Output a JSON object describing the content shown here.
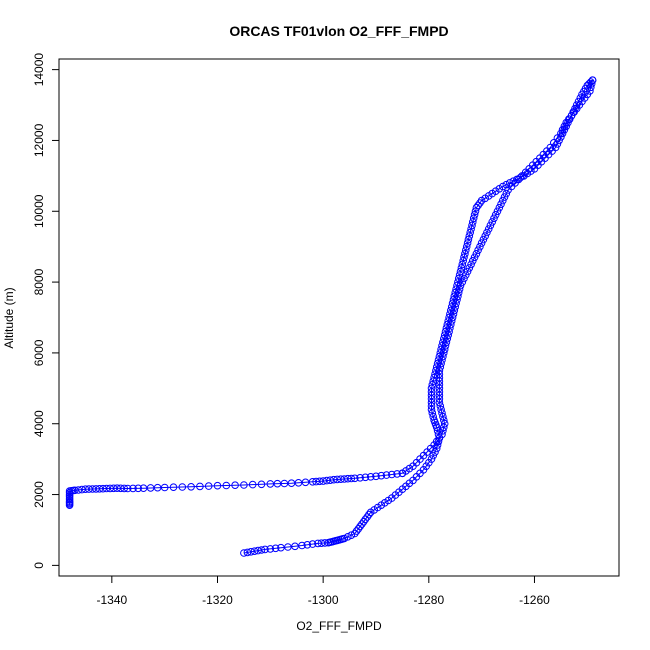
{
  "chart_data": {
    "type": "scatter",
    "title": "ORCAS TF01vlon O2_FFF_FMPD",
    "xlabel": "O2_FFF_FMPD",
    "ylabel": "Altitude (m)",
    "xlim": [
      -1350,
      -1244
    ],
    "ylim": [
      -300,
      14300
    ],
    "xticks": [
      -1340,
      -1320,
      -1300,
      -1280,
      -1260
    ],
    "yticks": [
      0,
      2000,
      4000,
      6000,
      8000,
      10000,
      12000,
      14000
    ],
    "grid": false,
    "legend": "none",
    "series_color": "#0000ff",
    "marker": "open-circle",
    "connected": true,
    "series": [
      {
        "segment": "climb-low",
        "points": [
          [
            -1315,
            350
          ],
          [
            -1313,
            400
          ],
          [
            -1311,
            450
          ],
          [
            -1308,
            500
          ],
          [
            -1304,
            560
          ],
          [
            -1301,
            620
          ],
          [
            -1299,
            640
          ],
          [
            -1298,
            680
          ],
          [
            -1297,
            720
          ],
          [
            -1296,
            760
          ],
          [
            -1294,
            900
          ],
          [
            -1293,
            1100
          ],
          [
            -1292,
            1300
          ],
          [
            -1291,
            1500
          ],
          [
            -1289,
            1700
          ],
          [
            -1287,
            1900
          ],
          [
            -1285,
            2150
          ],
          [
            -1283,
            2400
          ],
          [
            -1281,
            2700
          ],
          [
            -1279.5,
            3000
          ],
          [
            -1278.5,
            3300
          ],
          [
            -1278,
            3600
          ],
          [
            -1278.5,
            3900
          ],
          [
            -1279,
            4100
          ],
          [
            -1279.5,
            4400
          ],
          [
            -1279.5,
            4700
          ],
          [
            -1279.5,
            5000
          ],
          [
            -1279,
            5300
          ],
          [
            -1278.5,
            5600
          ],
          [
            -1278,
            5900
          ],
          [
            -1277.5,
            6200
          ],
          [
            -1277,
            6500
          ],
          [
            -1276.5,
            6800
          ],
          [
            -1276,
            7100
          ],
          [
            -1275.5,
            7400
          ],
          [
            -1275,
            7700
          ],
          [
            -1274.5,
            8000
          ],
          [
            -1274,
            8300
          ],
          [
            -1273.5,
            8600
          ],
          [
            -1273,
            8900
          ],
          [
            -1272.5,
            9200
          ],
          [
            -1272,
            9500
          ],
          [
            -1271.5,
            9800
          ],
          [
            -1271,
            10100
          ],
          [
            -1270,
            10300
          ],
          [
            -1268,
            10500
          ],
          [
            -1266,
            10700
          ],
          [
            -1264,
            10850
          ],
          [
            -1262,
            11000
          ],
          [
            -1260,
            11200
          ],
          [
            -1258,
            11500
          ],
          [
            -1256,
            11800
          ],
          [
            -1255,
            12100
          ],
          [
            -1254,
            12400
          ],
          [
            -1253,
            12700
          ],
          [
            -1252,
            13000
          ],
          [
            -1251,
            13300
          ],
          [
            -1250,
            13550
          ],
          [
            -1249,
            13700
          ]
        ]
      },
      {
        "segment": "descent",
        "points": [
          [
            -1249,
            13700
          ],
          [
            -1249.5,
            13400
          ],
          [
            -1251,
            13100
          ],
          [
            -1252.5,
            12800
          ],
          [
            -1254,
            12500
          ],
          [
            -1255,
            12200
          ],
          [
            -1257,
            11800
          ],
          [
            -1259,
            11500
          ],
          [
            -1261,
            11200
          ],
          [
            -1263,
            10900
          ],
          [
            -1265,
            10600
          ],
          [
            -1266,
            10300
          ],
          [
            -1267,
            10000
          ],
          [
            -1268,
            9700
          ],
          [
            -1269,
            9400
          ],
          [
            -1270,
            9100
          ],
          [
            -1271,
            8800
          ],
          [
            -1272,
            8500
          ],
          [
            -1273,
            8200
          ],
          [
            -1274,
            7900
          ],
          [
            -1274.5,
            7600
          ],
          [
            -1275,
            7300
          ],
          [
            -1275.5,
            7000
          ],
          [
            -1276,
            6700
          ],
          [
            -1276.5,
            6400
          ],
          [
            -1277,
            6100
          ],
          [
            -1277.5,
            5800
          ],
          [
            -1278,
            5500
          ],
          [
            -1278,
            5200
          ],
          [
            -1278,
            4900
          ],
          [
            -1278,
            4600
          ],
          [
            -1277.5,
            4300
          ],
          [
            -1277,
            4000
          ],
          [
            -1277.5,
            3700
          ],
          [
            -1279,
            3400
          ],
          [
            -1281,
            3100
          ],
          [
            -1283,
            2800
          ],
          [
            -1285,
            2600
          ]
        ]
      },
      {
        "segment": "level-leg",
        "points": [
          [
            -1285,
            2600
          ],
          [
            -1288,
            2550
          ],
          [
            -1291,
            2500
          ],
          [
            -1294,
            2460
          ],
          [
            -1296,
            2440
          ],
          [
            -1298,
            2420
          ],
          [
            -1300,
            2380
          ],
          [
            -1302,
            2360
          ],
          [
            -1306,
            2320
          ],
          [
            -1310,
            2300
          ],
          [
            -1315,
            2270
          ],
          [
            -1320,
            2250
          ],
          [
            -1325,
            2220
          ],
          [
            -1330,
            2200
          ],
          [
            -1334,
            2180
          ],
          [
            -1337,
            2170
          ],
          [
            -1339,
            2180
          ],
          [
            -1341,
            2170
          ],
          [
            -1343,
            2160
          ],
          [
            -1345,
            2150
          ],
          [
            -1347,
            2120
          ],
          [
            -1348,
            2100
          ],
          [
            -1348,
            1950
          ],
          [
            -1348,
            1800
          ],
          [
            -1348,
            1700
          ]
        ]
      }
    ]
  }
}
